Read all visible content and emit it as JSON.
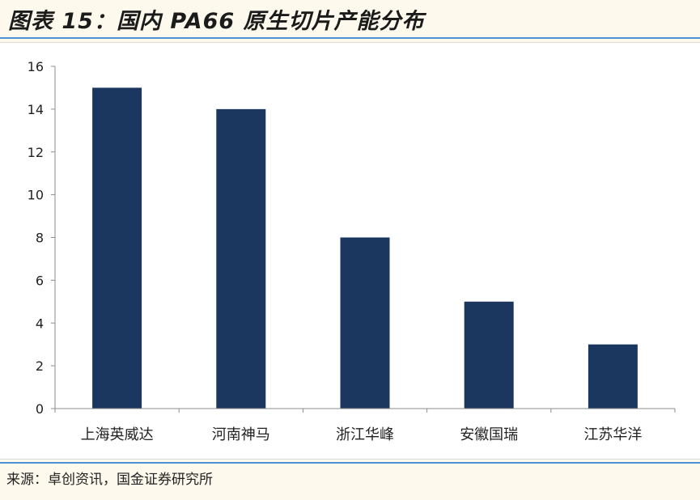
{
  "title": "图表 15：国内 PA66 原生切片产能分布",
  "source": "来源：卓创资讯，国金证券研究所",
  "colors": {
    "bar": "#1b3760",
    "rule": "#4f8fd6",
    "axis": "#8c8c8c"
  },
  "chart_data": {
    "type": "bar",
    "categories": [
      "上海英威达",
      "河南神马",
      "浙江华峰",
      "安徽国瑞",
      "江苏华洋"
    ],
    "values": [
      15,
      14,
      8,
      5,
      3
    ],
    "title": "图表 15：国内 PA66 原生切片产能分布",
    "xlabel": "",
    "ylabel": "",
    "ylim": [
      0,
      16
    ],
    "yticks": [
      0,
      2,
      4,
      6,
      8,
      10,
      12,
      14,
      16
    ],
    "grid": false,
    "legend": "none"
  }
}
